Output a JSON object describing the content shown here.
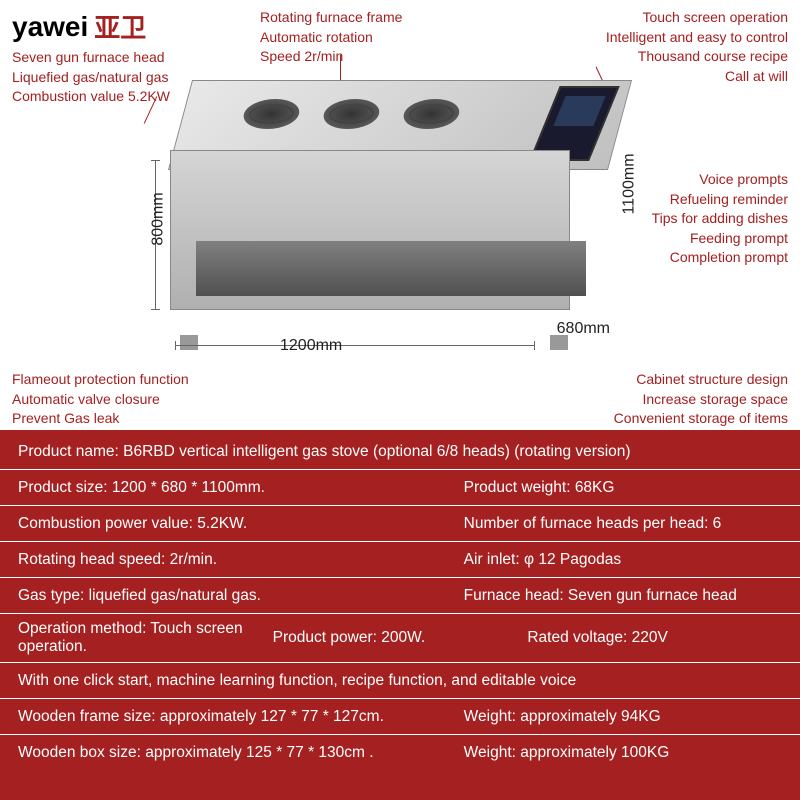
{
  "brand": {
    "en": "yawei",
    "cn": "亚卫"
  },
  "callouts": {
    "tl": [
      "Seven gun furnace head",
      "Liquefied gas/natural gas",
      "Combustion value 5.2KW"
    ],
    "tc": [
      "Rotating furnace frame",
      "Automatic rotation",
      "Speed 2r/min"
    ],
    "tr": [
      "Touch screen operation",
      "Intelligent and easy to control",
      "Thousand course recipe",
      "Call at will"
    ],
    "mr": [
      "Voice prompts",
      "Refueling reminder",
      "Tips for adding dishes",
      "Feeding prompt",
      "Completion prompt"
    ],
    "bl": [
      "Flameout protection function",
      "Automatic valve closure",
      "Prevent Gas leak"
    ],
    "br": [
      "Cabinet structure design",
      "Increase storage space",
      "Convenient storage of items"
    ]
  },
  "dimensions": {
    "h1": "800mm",
    "h2": "1100mm",
    "w": "1200mm",
    "d": "680mm"
  },
  "specs": [
    [
      {
        "t": "Product name: B6RBD vertical intelligent gas stove (optional 6/8 heads) (rotating version)",
        "c": "full"
      }
    ],
    [
      {
        "t": "Product size: 1200 * 680 * 1100mm.",
        "c": "left"
      },
      {
        "t": "Product weight: 68KG",
        "c": "right"
      }
    ],
    [
      {
        "t": "Combustion power value: 5.2KW.",
        "c": "left"
      },
      {
        "t": "Number of furnace heads per head: 6",
        "c": "right"
      }
    ],
    [
      {
        "t": "Rotating head speed: 2r/min.",
        "c": "left"
      },
      {
        "t": "Air inlet: φ 12 Pagodas",
        "c": "right"
      }
    ],
    [
      {
        "t": "Gas type: liquefied gas/natural gas.",
        "c": "left"
      },
      {
        "t": "Furnace head: Seven gun furnace head",
        "c": "right"
      }
    ],
    [
      {
        "t": "Operation method: Touch screen operation.",
        "c": "third"
      },
      {
        "t": "Product power: 200W.",
        "c": "third"
      },
      {
        "t": "Rated voltage: 220V",
        "c": "third"
      }
    ],
    [
      {
        "t": "With one click start, machine learning function, recipe function, and editable voice",
        "c": "full"
      }
    ],
    [
      {
        "t": "Wooden frame size: approximately 127 * 77 * 127cm.",
        "c": "left"
      },
      {
        "t": "Weight: approximately 94KG",
        "c": "right"
      }
    ],
    [
      {
        "t": "Wooden box size: approximately 125 * 77 * 130cm .",
        "c": "left"
      },
      {
        "t": "Weight: approximately 100KG",
        "c": "right"
      }
    ]
  ],
  "colors": {
    "accent": "#a52020",
    "bg": "#ffffff",
    "text": "#ffffff"
  }
}
